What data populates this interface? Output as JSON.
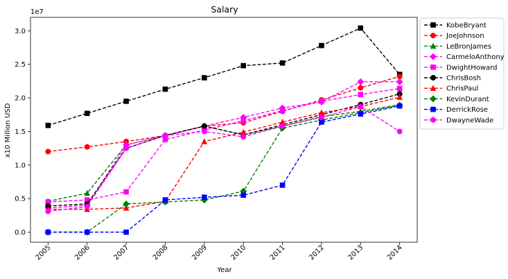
{
  "chart_data": {
    "type": "line",
    "title": "Salary",
    "xlabel": "Year",
    "ylabel": "x10 Million USD",
    "offset_text": "1e7",
    "x": [
      "2005",
      "2006",
      "2007",
      "2008",
      "2009",
      "2010",
      "2011",
      "2012",
      "2013",
      "2014"
    ],
    "ylim": [
      -1500000,
      32000000
    ],
    "yticks": [
      0,
      5000000,
      10000000,
      15000000,
      20000000,
      25000000,
      30000000
    ],
    "ytick_labels": [
      "0.0",
      "0.5",
      "1.0",
      "1.5",
      "2.0",
      "2.5",
      "3.0"
    ],
    "grid": false,
    "legend": "outside right",
    "series": [
      {
        "name": "KobeBryant",
        "color": "#000000",
        "marker": "square",
        "values": [
          15900000,
          17700000,
          19500000,
          21300000,
          23000000,
          24800000,
          25200000,
          27800000,
          30400000,
          23500000
        ]
      },
      {
        "name": "JoeJohnson",
        "color": "#ff0000",
        "marker": "circle",
        "values": [
          12000000,
          12700000,
          13500000,
          14400000,
          15800000,
          16300000,
          18000000,
          19700000,
          21500000,
          23200000
        ]
      },
      {
        "name": "LeBronJames",
        "color": "#008000",
        "marker": "triangle",
        "values": [
          4600000,
          5800000,
          13000000,
          14400000,
          15800000,
          14500000,
          15800000,
          17200000,
          18000000,
          19000000
        ]
      },
      {
        "name": "CarmeloAnthony",
        "color": "#ff00ff",
        "marker": "diamond",
        "values": [
          3600000,
          4000000,
          13000000,
          14400000,
          15800000,
          17100000,
          18500000,
          19400000,
          22400000,
          22400000
        ]
      },
      {
        "name": "DwightHoward",
        "color": "#ff00ff",
        "marker": "square",
        "values": [
          4500000,
          4800000,
          6000000,
          13800000,
          15200000,
          16600000,
          18100000,
          19500000,
          20500000,
          21400000
        ]
      },
      {
        "name": "ChrisBosh",
        "color": "#000000",
        "marker": "circle",
        "values": [
          3900000,
          4200000,
          12500000,
          14400000,
          15800000,
          14500000,
          16000000,
          17500000,
          19000000,
          20600000
        ]
      },
      {
        "name": "ChrisPaul",
        "color": "#ff0000",
        "marker": "triangle",
        "values": [
          3400000,
          3400000,
          3600000,
          4600000,
          13500000,
          14900000,
          16400000,
          17800000,
          18700000,
          20100000
        ]
      },
      {
        "name": "KevinDurant",
        "color": "#008000",
        "marker": "diamond",
        "values": [
          0,
          0,
          4200000,
          4500000,
          4800000,
          6100000,
          15500000,
          16700000,
          17800000,
          18900000
        ]
      },
      {
        "name": "DerrickRose",
        "color": "#0000ff",
        "marker": "square",
        "values": [
          0,
          0,
          0,
          4800000,
          5200000,
          5500000,
          7000000,
          16400000,
          17600000,
          18800000
        ]
      },
      {
        "name": "DwayneWade",
        "color": "#ff00ff",
        "marker": "circle",
        "values": [
          3100000,
          3800000,
          12500000,
          14400000,
          15000000,
          14200000,
          15800000,
          17100000,
          18700000,
          15000000
        ]
      }
    ]
  }
}
